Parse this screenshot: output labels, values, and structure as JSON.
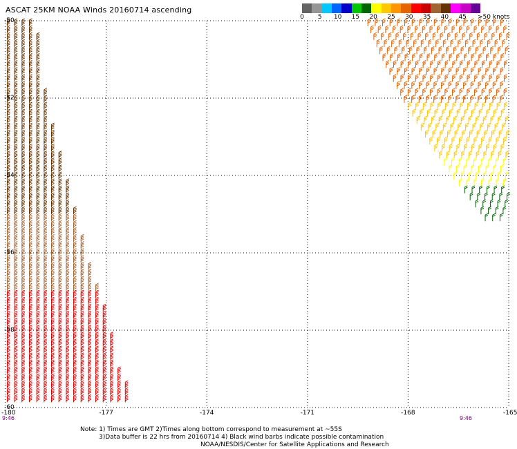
{
  "title": "ASCAT 25KM NOAA Winds 20160714 ascending",
  "scale": {
    "unit": "knots",
    "colors": [
      "#646464",
      "#969696",
      "#00c8ff",
      "#0064ff",
      "#0000c8",
      "#00c800",
      "#006400",
      "#ffff00",
      "#ffc800",
      "#ff9600",
      "#e66400",
      "#ff0000",
      "#c80000",
      "#a06432",
      "#643200",
      "#ff00ff",
      "#c800c8",
      "#640096"
    ],
    "ticks": [
      {
        "value": "0",
        "label": "0"
      },
      {
        "value": "5",
        "label": "5"
      },
      {
        "value": "10",
        "label": "10"
      },
      {
        "value": "15",
        "label": "15"
      },
      {
        "value": "20",
        "label": "20"
      },
      {
        "value": "25",
        "label": "25"
      },
      {
        "value": "30",
        "label": "30"
      },
      {
        "value": "35",
        "label": "35"
      },
      {
        "value": "40",
        "label": "40"
      },
      {
        "value": "45",
        "label": "45"
      },
      {
        "value": ">50",
        "label": ">50 knots"
      }
    ]
  },
  "map": {
    "lon_range": [
      -180,
      -165
    ],
    "lat_range": [
      -60,
      -50
    ],
    "x_ticks": [
      "-180",
      "-177",
      "-174",
      "-171",
      "-168",
      "-165"
    ],
    "y_ticks": [
      "-50",
      "-52",
      "-54",
      "-56",
      "-58",
      "-60"
    ],
    "gridlines": "dotted",
    "swaths": [
      {
        "name": "west",
        "time": "9:46",
        "edge_lons": [
          -180.0,
          -179.0,
          -178.0,
          -177.0,
          -176.0
        ],
        "rows": [
          {
            "lat": -50.0,
            "width_lons": 0.9
          },
          {
            "lat": -51.0,
            "width_lons": 1.0
          },
          {
            "lat": -52.0,
            "width_lons": 1.2
          },
          {
            "lat": -53.0,
            "width_lons": 1.5
          },
          {
            "lat": -54.0,
            "width_lons": 1.8
          },
          {
            "lat": -55.0,
            "width_lons": 2.1
          },
          {
            "lat": -56.0,
            "width_lons": 2.4
          },
          {
            "lat": -57.0,
            "width_lons": 2.8
          },
          {
            "lat": -58.0,
            "width_lons": 3.1
          },
          {
            "lat": -59.0,
            "width_lons": 3.4
          },
          {
            "lat": -60.0,
            "width_lons": 3.9
          }
        ],
        "wind_bands": [
          {
            "lat_from": -50.0,
            "lat_to": -53.0,
            "speed_kt": 40,
            "color": "#643200"
          },
          {
            "lat_from": -53.0,
            "lat_to": -55.0,
            "speed_kt": 45,
            "color": "#643200"
          },
          {
            "lat_from": -55.0,
            "lat_to": -57.0,
            "speed_kt": 40,
            "color": "#a06432"
          },
          {
            "lat_from": -57.0,
            "lat_to": -60.0,
            "speed_kt": 35,
            "color": "#e60000"
          }
        ]
      },
      {
        "name": "east",
        "time": "9:46",
        "rows": [
          {
            "lat": -50.0,
            "lon_from": -169.2,
            "lon_to": -165.0
          },
          {
            "lat": -51.0,
            "lon_from": -168.7,
            "lon_to": -165.0
          },
          {
            "lat": -52.0,
            "lon_from": -168.1,
            "lon_to": -165.0
          },
          {
            "lat": -53.0,
            "lon_from": -167.4,
            "lon_to": -165.0
          },
          {
            "lat": -54.0,
            "lon_from": -166.6,
            "lon_to": -165.0
          },
          {
            "lat": -55.0,
            "lon_from": -165.7,
            "lon_to": -165.0
          }
        ],
        "wind_bands": [
          {
            "lat_from": -50.0,
            "lat_to": -52.0,
            "speed_kt": 30,
            "color": "#e66400"
          },
          {
            "lat_from": -52.0,
            "lat_to": -53.5,
            "speed_kt": 25,
            "color": "#ffc800"
          },
          {
            "lat_from": -53.5,
            "lat_to": -54.3,
            "speed_kt": 20,
            "color": "#ffff00"
          },
          {
            "lat_from": -54.3,
            "lat_to": -55.2,
            "speed_kt": 15,
            "color": "#006400"
          }
        ]
      }
    ]
  },
  "notes": [
    "Note: 1) Times are GMT 2)Times along bottom correspond to measurement at ~55S",
    "3)Data buffer is 22 hrs from 20160714 4) Black wind barbs indicate possible contamination",
    "NOAA/NESDIS/Center for Satellite Applications and Research"
  ]
}
